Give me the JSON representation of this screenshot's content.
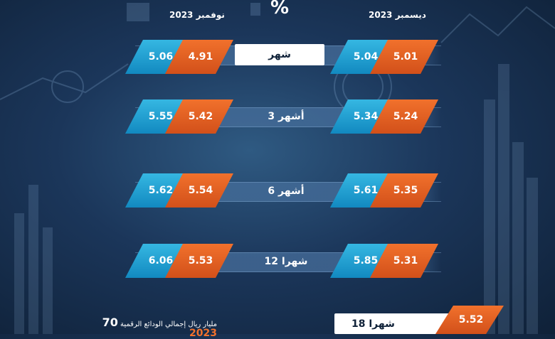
{
  "header": {
    "percent_symbol": "%",
    "month_left": "نوفمبر 2023",
    "month_right": "ديسمبر 2023"
  },
  "rows": [
    {
      "term": "شهر",
      "nov_blue": "5.06",
      "nov_orange": "4.91",
      "dec_blue": "5.04",
      "dec_orange": "5.01"
    },
    {
      "term": "3 أشهر",
      "nov_blue": "5.55",
      "nov_orange": "5.42",
      "dec_blue": "5.34",
      "dec_orange": "5.24"
    },
    {
      "term": "6 أشهر",
      "nov_blue": "5.62",
      "nov_orange": "5.54",
      "dec_blue": "5.61",
      "dec_orange": "5.35"
    },
    {
      "term": "12 شهرا",
      "nov_blue": "6.06",
      "nov_orange": "5.53",
      "dec_blue": "5.85",
      "dec_orange": "5.31"
    },
    {
      "term": "18 شهرا",
      "dec_orange": "5.52"
    }
  ],
  "footer": {
    "number": "70",
    "line1": "مليار ريال إجمالي الودائع الرقمية",
    "year": "2023"
  },
  "colors": {
    "blue": "#1ea3d6",
    "orange": "#e5611f",
    "background": "#1b365a"
  }
}
